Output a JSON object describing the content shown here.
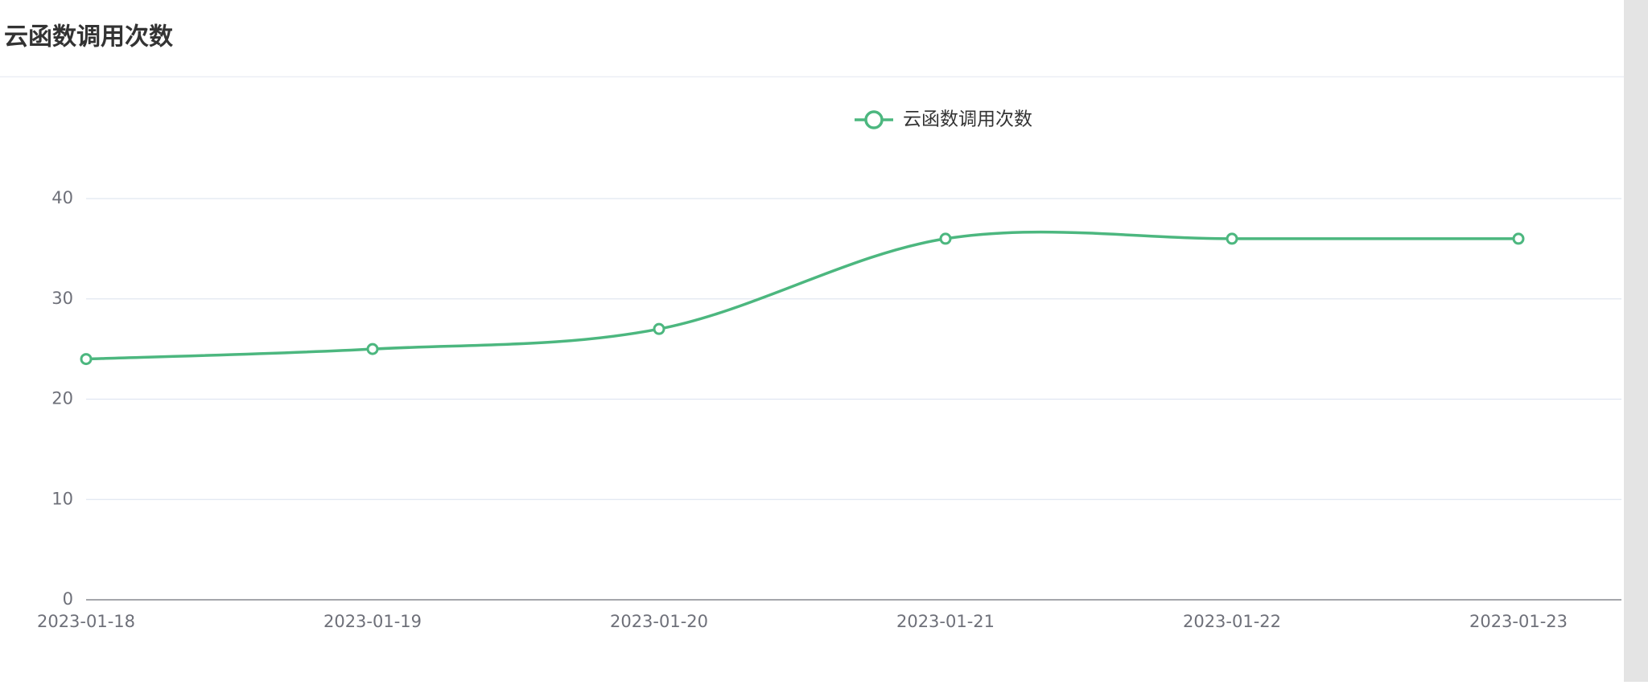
{
  "chart_data": {
    "type": "line",
    "title": "云函数调用次数",
    "categories": [
      "2023-01-18",
      "2023-01-19",
      "2023-01-20",
      "2023-01-21",
      "2023-01-22",
      "2023-01-23"
    ],
    "series": [
      {
        "name": "云函数调用次数",
        "color": "#4cb77f",
        "values": [
          24,
          25,
          27,
          36,
          36,
          36
        ]
      }
    ],
    "ylim": [
      0,
      40
    ],
    "yticks": [
      0,
      10,
      20,
      30,
      40
    ],
    "grid": true,
    "smooth": true,
    "legend": "top"
  }
}
